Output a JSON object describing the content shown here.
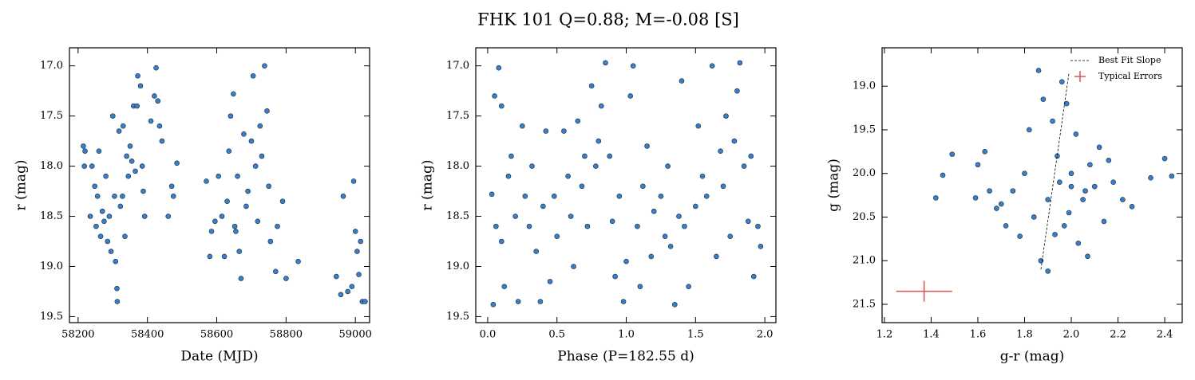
{
  "title": "FHK 101  Q=0.88; M=-0.08 [S]",
  "chart_data": [
    {
      "type": "scatter",
      "xlabel": "Date (MJD)",
      "ylabel": "r (mag)",
      "color": "#3a7dc9",
      "y_inverted": true,
      "xlim": [
        58175,
        59041
      ],
      "ylim": [
        16.82,
        19.56
      ],
      "xticks": [
        58200,
        58400,
        58600,
        58800,
        59000
      ],
      "yticks": [
        {
          "value": 17,
          "label": "17.0"
        },
        17.5,
        {
          "value": 18,
          "label": "18.0"
        },
        18.5,
        {
          "value": 19,
          "label": "19.0"
        },
        19.5
      ],
      "x": [
        58215,
        58218,
        58220,
        58235,
        58240,
        58248,
        58252,
        58256,
        58260,
        58265,
        58270,
        58275,
        58280,
        58285,
        58290,
        58295,
        58300,
        58305,
        58308,
        58312,
        58313,
        58318,
        58322,
        58328,
        58330,
        58335,
        58340,
        58345,
        58350,
        58355,
        58360,
        58365,
        58370,
        58372,
        58380,
        58385,
        58388,
        58392,
        58410,
        58420,
        58425,
        58430,
        58435,
        58442,
        58460,
        58470,
        58475,
        58485,
        58570,
        58580,
        58585,
        58595,
        58605,
        58615,
        58622,
        58630,
        58635,
        58640,
        58648,
        58652,
        58655,
        58660,
        58665,
        58670,
        58678,
        58685,
        58690,
        58700,
        58705,
        58712,
        58718,
        58725,
        58730,
        58738,
        58745,
        58750,
        58755,
        58770,
        58775,
        58790,
        58800,
        58835,
        58945,
        58958,
        58965,
        58978,
        58990,
        58995,
        59000,
        59005,
        59010,
        59015,
        59020,
        59028
      ],
      "values": [
        17.8,
        18.0,
        17.85,
        18.5,
        18.0,
        18.2,
        18.6,
        18.3,
        17.85,
        18.7,
        18.45,
        18.55,
        18.1,
        18.75,
        18.5,
        18.85,
        17.5,
        18.3,
        18.95,
        19.22,
        19.35,
        17.65,
        18.4,
        18.3,
        17.6,
        18.7,
        17.9,
        18.1,
        17.8,
        17.95,
        17.4,
        18.05,
        17.4,
        17.1,
        17.2,
        18.0,
        18.25,
        18.5,
        17.55,
        17.3,
        17.02,
        17.35,
        17.6,
        17.75,
        18.5,
        18.2,
        18.3,
        17.97,
        18.15,
        18.9,
        18.65,
        18.55,
        18.1,
        18.5,
        18.9,
        18.35,
        17.85,
        17.5,
        17.28,
        18.6,
        18.65,
        18.1,
        18.85,
        19.12,
        17.68,
        18.4,
        18.25,
        17.75,
        17.1,
        18.0,
        18.55,
        17.6,
        17.9,
        17.0,
        17.45,
        18.2,
        18.75,
        19.05,
        18.6,
        18.35,
        19.12,
        18.95,
        19.1,
        19.28,
        18.3,
        19.25,
        19.2,
        18.15,
        18.65,
        18.85,
        19.08,
        18.75,
        19.35,
        19.35
      ]
    },
    {
      "type": "scatter",
      "xlabel": "Phase (P=182.55 d)",
      "ylabel": "r (mag)",
      "color": "#3a7dc9",
      "y_inverted": true,
      "xlim": [
        -0.086,
        2.08
      ],
      "ylim": [
        16.82,
        19.56
      ],
      "xticks": [
        {
          "value": 0,
          "label": "0.0"
        },
        0.5,
        {
          "value": 1,
          "label": "1.0"
        },
        1.5,
        {
          "value": 2,
          "label": "2.0"
        }
      ],
      "yticks": [
        {
          "value": 17,
          "label": "17.0"
        },
        17.5,
        {
          "value": 18,
          "label": "18.0"
        },
        18.5,
        {
          "value": 19,
          "label": "19.0"
        },
        19.5
      ],
      "x": [
        0.03,
        0.04,
        0.05,
        0.06,
        0.08,
        0.1,
        0.1,
        0.12,
        0.15,
        0.17,
        0.2,
        0.22,
        0.25,
        0.27,
        0.3,
        0.32,
        0.35,
        0.38,
        0.4,
        0.42,
        0.45,
        0.48,
        0.5,
        0.55,
        0.58,
        0.6,
        0.62,
        0.65,
        0.68,
        0.7,
        0.72,
        0.75,
        0.78,
        0.8,
        0.82,
        0.85,
        0.88,
        0.9,
        0.92,
        0.95,
        0.98,
        1.0,
        1.03,
        1.05,
        1.08,
        1.1,
        1.12,
        1.15,
        1.18,
        1.2,
        1.25,
        1.28,
        1.3,
        1.32,
        1.35,
        1.38,
        1.4,
        1.42,
        1.45,
        1.5,
        1.52,
        1.55,
        1.58,
        1.62,
        1.65,
        1.68,
        1.7,
        1.72,
        1.75,
        1.78,
        1.8,
        1.82,
        1.85,
        1.88,
        1.9,
        1.92,
        1.95,
        1.97
      ],
      "values": [
        18.28,
        19.38,
        17.3,
        18.6,
        17.02,
        17.4,
        18.75,
        19.2,
        18.1,
        17.9,
        18.5,
        19.35,
        17.6,
        18.3,
        18.6,
        18.0,
        18.85,
        19.35,
        18.4,
        17.65,
        19.15,
        18.3,
        18.7,
        17.65,
        18.1,
        18.5,
        19.0,
        17.55,
        18.2,
        17.9,
        18.6,
        17.2,
        18.0,
        17.75,
        17.4,
        16.97,
        17.9,
        18.55,
        19.1,
        18.3,
        19.35,
        18.95,
        17.3,
        17.0,
        18.6,
        19.2,
        18.2,
        17.8,
        18.9,
        18.45,
        18.3,
        18.7,
        18.0,
        18.8,
        19.38,
        18.5,
        17.15,
        18.6,
        19.2,
        18.4,
        17.6,
        18.1,
        18.3,
        17.0,
        18.9,
        17.85,
        18.2,
        17.5,
        18.7,
        17.75,
        17.25,
        16.97,
        18.0,
        18.55,
        17.9,
        19.1,
        18.6,
        18.8
      ]
    },
    {
      "type": "scatter",
      "xlabel": "g-r (mag)",
      "ylabel": "g (mag)",
      "color": "#3a7dc9",
      "y_inverted": true,
      "xlim": [
        1.19,
        2.475
      ],
      "ylim": [
        18.56,
        21.71
      ],
      "xticks": [
        1.2,
        1.4,
        1.6,
        1.8,
        {
          "value": 2,
          "label": "2.0"
        },
        2.2,
        2.4
      ],
      "yticks": [
        {
          "value": 19,
          "label": "19.0"
        },
        19.5,
        {
          "value": 20,
          "label": "20.0"
        },
        20.5,
        {
          "value": 21,
          "label": "21.0"
        },
        21.5
      ],
      "legend": "upper right",
      "x": [
        1.42,
        1.45,
        1.49,
        1.59,
        1.6,
        1.63,
        1.65,
        1.68,
        1.7,
        1.72,
        1.75,
        1.78,
        1.8,
        1.82,
        1.84,
        1.86,
        1.87,
        1.88,
        1.9,
        1.9,
        1.92,
        1.94,
        1.95,
        1.96,
        1.97,
        1.98,
        2.0,
        2.02,
        2.03,
        2.05,
        2.07,
        2.08,
        2.1,
        2.12,
        2.14,
        2.16,
        2.18,
        2.22,
        2.26,
        2.34,
        2.4,
        2.43,
        2.0,
        1.93,
        2.06,
        1.99
      ],
      "values": [
        20.28,
        20.02,
        19.78,
        20.28,
        19.9,
        19.75,
        20.2,
        20.4,
        20.35,
        20.6,
        20.2,
        20.72,
        20.0,
        19.5,
        20.5,
        18.82,
        21.0,
        19.15,
        21.12,
        20.3,
        19.4,
        19.8,
        20.1,
        18.95,
        20.6,
        19.2,
        20.15,
        19.55,
        20.8,
        20.3,
        20.95,
        19.9,
        20.15,
        19.7,
        20.55,
        19.85,
        20.1,
        20.3,
        20.38,
        20.05,
        19.83,
        20.03,
        20.0,
        20.7,
        20.2,
        20.45
      ],
      "fit": {
        "name": "Best Fit Slope",
        "color": "#000000",
        "x": [
          1.87,
          1.99
        ],
        "values": [
          21.1,
          18.85
        ]
      },
      "errors": {
        "name": "Typical Errors",
        "color": "#d9534f",
        "x": [
          1.37
        ],
        "values": [
          21.35
        ],
        "xerr": [
          0.12
        ],
        "yerr": [
          0.12
        ]
      }
    }
  ]
}
